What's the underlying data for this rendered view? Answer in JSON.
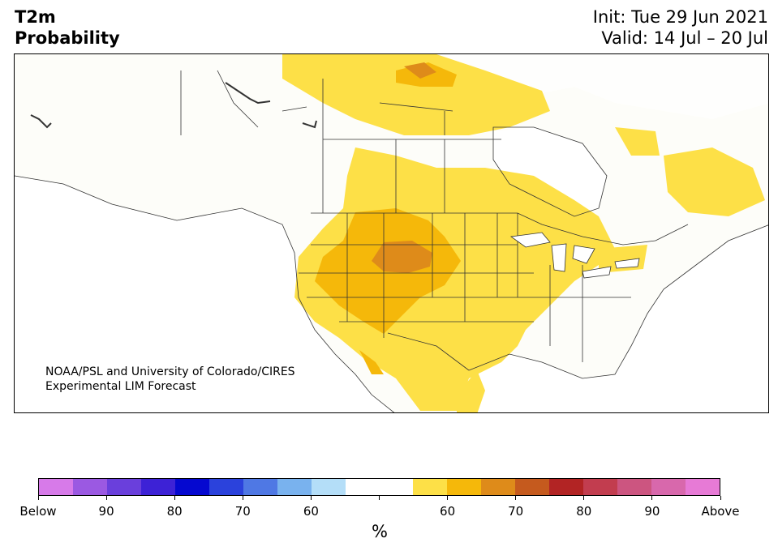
{
  "header": {
    "variable": "T2m",
    "product": "Probability",
    "init": "Init: Tue 29 Jun 2021",
    "valid": "Valid: 14 Jul – 20 Jul"
  },
  "map": {
    "credit_line1": "NOAA/PSL and University of Colorado/CIRES",
    "credit_line2": "Experimental LIM Forecast",
    "land_color": "#fdfdf9",
    "border_color": "#333333",
    "prob_colors": {
      "above_50_60": "#fde047",
      "above_60_70": "#f5b80a",
      "above_70_80": "#de8b1a"
    }
  },
  "colorbar": {
    "unit": "%",
    "colors": [
      "#d77ae9",
      "#9b59e2",
      "#6a3fdc",
      "#3d22d6",
      "#0508d0",
      "#2b42dc",
      "#4f78e4",
      "#79b2ee",
      "#b4def8",
      "#ffffff",
      "#ffffff",
      "#fde047",
      "#f5b80a",
      "#de8b1a",
      "#c55a1e",
      "#b22424",
      "#c23d4f",
      "#cc5580",
      "#d868ac",
      "#e77ad6"
    ],
    "labels": [
      "Below",
      "90",
      "80",
      "70",
      "60",
      "",
      "60",
      "70",
      "80",
      "90",
      "Above"
    ]
  }
}
